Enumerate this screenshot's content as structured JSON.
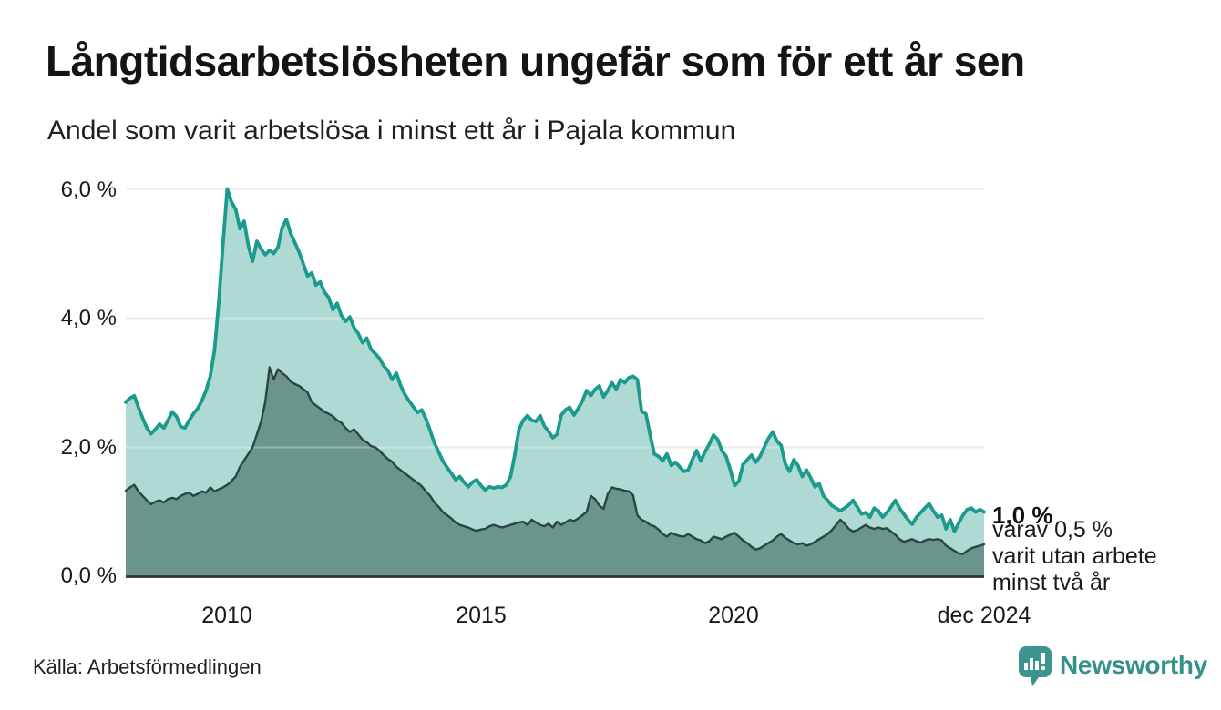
{
  "header": {
    "title": "Långtidsarbetslösheten ungefär som för ett år sen",
    "subtitle": "Andel som varit arbetslösa i minst ett år i Pajala kommun"
  },
  "annotation": {
    "value_label": "1,0 %",
    "lines": [
      "varav 0,5 %",
      "varit utan arbete",
      "minst två år"
    ]
  },
  "footer": {
    "source": "Källa: Arbetsförmedlingen",
    "brand": "Newsworthy"
  },
  "colors": {
    "accent_teal_line": "#1a9b8d",
    "light_area_fill": "#aedad3",
    "dark_area_fill": "#6b948d",
    "dark_area_line": "#2a4542",
    "gridline": "#e2e2e2",
    "baseline": "#333333",
    "brand_teal": "#3b958c",
    "text": "#1a1a1a"
  },
  "chart_data": {
    "type": "area",
    "title": "Långtidsarbetslösheten ungefär som för ett år sen",
    "subtitle": "Andel som varit arbetslösa i minst ett år i Pajala kommun",
    "unit": "%",
    "grid": true,
    "ylim": [
      0,
      6.25
    ],
    "y_tick_values": [
      0,
      2,
      4,
      6
    ],
    "y_tick_labels": [
      "0,0 %",
      "2,0 %",
      "4,0 %",
      "6,0 %"
    ],
    "x_tick_labels": [
      "2010",
      "2015",
      "2020",
      "dec 2024"
    ],
    "x_tick_years": [
      2010,
      2015,
      2020,
      2024.9167
    ],
    "x_monthly_start": "2008-01",
    "x_monthly_end": "2024-12",
    "series": [
      {
        "id": "minst_ett_ar",
        "label": "Andel som varit arbetslösa i minst ett år",
        "end_label": "1,0 %",
        "end_value": 1.0,
        "monthly_values": [
          2.7,
          2.76,
          2.8,
          2.62,
          2.45,
          2.3,
          2.21,
          2.28,
          2.36,
          2.3,
          2.42,
          2.55,
          2.48,
          2.32,
          2.3,
          2.42,
          2.52,
          2.6,
          2.72,
          2.88,
          3.1,
          3.5,
          4.25,
          5.15,
          6.0,
          5.8,
          5.68,
          5.38,
          5.5,
          5.12,
          4.88,
          5.19,
          5.07,
          4.98,
          5.05,
          5.0,
          5.1,
          5.4,
          5.53,
          5.31,
          5.17,
          5.02,
          4.84,
          4.65,
          4.7,
          4.51,
          4.56,
          4.4,
          4.32,
          4.13,
          4.23,
          4.04,
          3.95,
          4.02,
          3.85,
          3.76,
          3.62,
          3.69,
          3.52,
          3.45,
          3.38,
          3.26,
          3.19,
          3.05,
          3.15,
          2.96,
          2.82,
          2.72,
          2.63,
          2.54,
          2.58,
          2.44,
          2.26,
          2.07,
          1.93,
          1.79,
          1.69,
          1.6,
          1.5,
          1.55,
          1.46,
          1.39,
          1.46,
          1.5,
          1.41,
          1.34,
          1.39,
          1.37,
          1.39,
          1.38,
          1.42,
          1.55,
          1.88,
          2.28,
          2.42,
          2.49,
          2.42,
          2.4,
          2.49,
          2.33,
          2.25,
          2.15,
          2.2,
          2.5,
          2.58,
          2.62,
          2.5,
          2.6,
          2.72,
          2.88,
          2.8,
          2.9,
          2.95,
          2.78,
          2.88,
          3.0,
          2.9,
          3.05,
          3.0,
          3.08,
          3.1,
          3.05,
          2.56,
          2.52,
          2.2,
          1.9,
          1.86,
          1.79,
          1.9,
          1.72,
          1.77,
          1.7,
          1.63,
          1.65,
          1.81,
          1.95,
          1.79,
          1.93,
          2.05,
          2.19,
          2.12,
          1.95,
          1.86,
          1.65,
          1.41,
          1.48,
          1.74,
          1.81,
          1.88,
          1.77,
          1.86,
          2.0,
          2.14,
          2.24,
          2.1,
          2.03,
          1.74,
          1.63,
          1.81,
          1.72,
          1.55,
          1.65,
          1.53,
          1.39,
          1.44,
          1.25,
          1.18,
          1.1,
          1.06,
          1.02,
          1.06,
          1.11,
          1.18,
          1.08,
          0.97,
          0.99,
          0.92,
          1.06,
          1.02,
          0.92,
          0.99,
          1.08,
          1.18,
          1.06,
          0.97,
          0.88,
          0.81,
          0.92,
          0.99,
          1.06,
          1.13,
          1.02,
          0.92,
          0.95,
          0.74,
          0.88,
          0.7,
          0.83,
          0.95,
          1.04,
          1.06,
          1.0,
          1.04,
          1.0
        ]
      },
      {
        "id": "minst_tva_ar",
        "label": "varav utan arbete minst två år",
        "end_label": "varav 0,5 % varit utan arbete minst två år",
        "end_value": 0.5,
        "monthly_values": [
          1.33,
          1.38,
          1.42,
          1.32,
          1.25,
          1.18,
          1.12,
          1.16,
          1.18,
          1.15,
          1.2,
          1.22,
          1.2,
          1.25,
          1.28,
          1.3,
          1.25,
          1.28,
          1.32,
          1.3,
          1.38,
          1.32,
          1.35,
          1.38,
          1.42,
          1.48,
          1.55,
          1.7,
          1.8,
          1.9,
          2.0,
          2.2,
          2.4,
          2.7,
          3.24,
          3.05,
          3.21,
          3.15,
          3.1,
          3.02,
          2.98,
          2.95,
          2.9,
          2.85,
          2.7,
          2.65,
          2.6,
          2.55,
          2.52,
          2.48,
          2.42,
          2.38,
          2.3,
          2.24,
          2.28,
          2.2,
          2.12,
          2.08,
          2.02,
          2.0,
          1.95,
          1.88,
          1.82,
          1.78,
          1.7,
          1.65,
          1.6,
          1.55,
          1.5,
          1.45,
          1.4,
          1.32,
          1.25,
          1.15,
          1.08,
          1.0,
          0.95,
          0.9,
          0.84,
          0.8,
          0.78,
          0.76,
          0.73,
          0.71,
          0.73,
          0.74,
          0.78,
          0.8,
          0.78,
          0.76,
          0.78,
          0.8,
          0.82,
          0.84,
          0.85,
          0.8,
          0.88,
          0.84,
          0.8,
          0.78,
          0.82,
          0.76,
          0.85,
          0.8,
          0.84,
          0.88,
          0.86,
          0.9,
          0.95,
          1.0,
          1.25,
          1.2,
          1.1,
          1.05,
          1.28,
          1.38,
          1.36,
          1.35,
          1.33,
          1.32,
          1.26,
          0.95,
          0.88,
          0.85,
          0.8,
          0.78,
          0.73,
          0.66,
          0.62,
          0.68,
          0.65,
          0.63,
          0.62,
          0.66,
          0.62,
          0.58,
          0.56,
          0.52,
          0.55,
          0.62,
          0.6,
          0.58,
          0.62,
          0.65,
          0.68,
          0.62,
          0.56,
          0.52,
          0.46,
          0.42,
          0.44,
          0.48,
          0.52,
          0.56,
          0.62,
          0.66,
          0.6,
          0.56,
          0.52,
          0.5,
          0.52,
          0.48,
          0.5,
          0.54,
          0.58,
          0.62,
          0.66,
          0.72,
          0.8,
          0.88,
          0.82,
          0.74,
          0.7,
          0.72,
          0.76,
          0.8,
          0.76,
          0.74,
          0.76,
          0.74,
          0.75,
          0.7,
          0.65,
          0.58,
          0.54,
          0.56,
          0.58,
          0.55,
          0.53,
          0.56,
          0.58,
          0.57,
          0.58,
          0.56,
          0.48,
          0.44,
          0.4,
          0.36,
          0.35,
          0.4,
          0.44,
          0.46,
          0.48,
          0.5
        ]
      }
    ]
  }
}
